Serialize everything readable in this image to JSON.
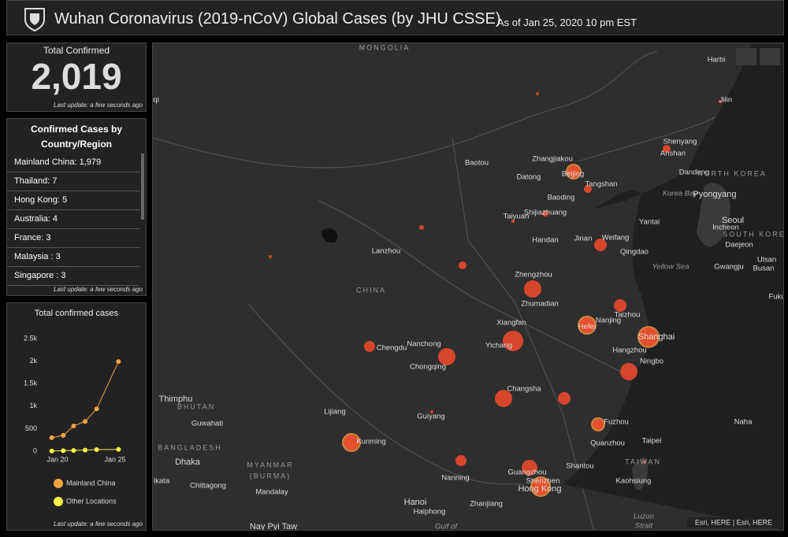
{
  "header": {
    "title": "Wuhan Coronavirus (2019-nCoV) Global Cases (by JHU CSSE)",
    "subtitle": "As of Jan 25, 2020 10 pm EST"
  },
  "total": {
    "label": "Total Confirmed",
    "value": "2,019",
    "update": "Last update: a few seconds ago"
  },
  "country_list": {
    "title": "Confirmed Cases by Country/Region",
    "update": "Last update: a few seconds ago",
    "items": [
      {
        "name": "Mainland China:",
        "value": "1,979"
      },
      {
        "name": "Thailand:",
        "value": "7"
      },
      {
        "name": "Hong Kong:",
        "value": "5"
      },
      {
        "name": "Australia:",
        "value": "4"
      },
      {
        "name": "France:",
        "value": "3"
      },
      {
        "name": "Malaysia :",
        "value": "3"
      },
      {
        "name": "Singapore :",
        "value": "3"
      }
    ]
  },
  "chart_data": {
    "type": "line",
    "title": "Total confirmed cases",
    "x": [
      19.5,
      20.5,
      21.4,
      22.4,
      23.4,
      25.3
    ],
    "xlim": [
      19,
      26
    ],
    "xticks": [
      {
        "value": 20,
        "label": "Jan 20"
      },
      {
        "value": 25,
        "label": "Jan 25"
      }
    ],
    "ylim": [
      0,
      2500
    ],
    "yticks": [
      0,
      500,
      {
        "value": 1000,
        "label": "1k"
      },
      {
        "value": 1500,
        "label": "1.5k"
      },
      {
        "value": 2000,
        "label": "2k"
      },
      {
        "value": 2500,
        "label": "2.5k"
      }
    ],
    "series": [
      {
        "name": "Mainland China",
        "color": "#f4a340",
        "values": [
          300,
          350,
          560,
          660,
          940,
          1990
        ]
      },
      {
        "name": "Other Locations",
        "color": "#f5f24a",
        "values": [
          5,
          10,
          15,
          25,
          35,
          40
        ]
      }
    ],
    "update": "Last update: a few seconds ago"
  },
  "map": {
    "labels": [
      "MONGOLIA",
      "Harbi",
      "Jilin",
      "Shenyang",
      "Anshan",
      "Dandong",
      "NORTH KOREA",
      "Pyongyang",
      "Korea Bay",
      "Seoul",
      "Incheon",
      "SOUTH KOREA",
      "Daejeon",
      "Ulsan",
      "Busan",
      "Gwangju",
      "Fuku",
      "Baotou",
      "Zhangjiakou",
      "Beijing",
      "Tangshan",
      "Datong",
      "Baoding",
      "Shijiazhuang",
      "Taiyuan",
      "Yantai",
      "Handan",
      "Jinan",
      "Weifang",
      "Qingdao",
      "Yellow Sea",
      "Lanzhou",
      "CHINA",
      "Zhengzhou",
      "Zhumadian",
      "Taizhou",
      "Nanjing",
      "Xiangfan",
      "Hefei",
      "Shanghai",
      "Yichang",
      "Hangzhou",
      "Ningbo",
      "Chengdu",
      "Nanchong",
      "Chongqing",
      "Changsha",
      "Thimphu",
      "BHUTAN",
      "Lijiang",
      "Guiyang",
      "Fuzhou",
      "Guwahati",
      "Taipei",
      "Quanzhou",
      "Naha",
      "BANGLADESH",
      "Kunming",
      "Dhaka",
      "Shantou",
      "TAIWAN",
      "MYANMAR",
      "(BURMA)",
      "Nanning",
      "Guangzhou",
      "Shenzhen",
      "Hong Kong",
      "Kaohsiung",
      "lkata",
      "Chittagong",
      "Mandalay",
      "Hanoi",
      "Zhanjiang",
      "Haiphong",
      "Luzon",
      "Strait",
      "Gulf of",
      "Nay Pyi Taw",
      "qi"
    ],
    "attribution": "Esri, HERE | Esri, HERE"
  }
}
